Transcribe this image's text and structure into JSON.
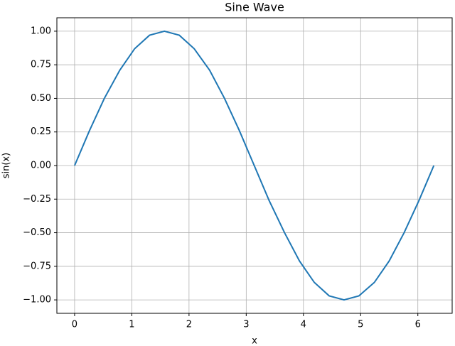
{
  "chart_data": {
    "type": "line",
    "title": "Sine Wave",
    "x_label": "x",
    "y_label": "sin(x)",
    "x": [
      0,
      0.26,
      0.52,
      0.79,
      1.05,
      1.31,
      1.57,
      1.83,
      2.09,
      2.36,
      2.62,
      2.88,
      3.14,
      3.4,
      3.67,
      3.93,
      4.19,
      4.45,
      4.71,
      4.97,
      5.24,
      5.5,
      5.76,
      6.02,
      6.28
    ],
    "series": [
      {
        "name": "sin(x)",
        "color": "#1f77b4",
        "values": [
          0,
          0.26,
          0.5,
          0.71,
          0.87,
          0.97,
          1,
          0.97,
          0.87,
          0.71,
          0.5,
          0.26,
          0,
          -0.26,
          -0.5,
          -0.71,
          -0.87,
          -0.97,
          -1,
          -0.97,
          -0.87,
          -0.71,
          -0.5,
          -0.26,
          0
        ]
      }
    ],
    "xlim": [
      -0.31,
      6.6
    ],
    "ylim": [
      -1.1,
      1.1
    ],
    "xticks": [
      0,
      1,
      2,
      3,
      4,
      5,
      6
    ],
    "yticks": [
      {
        "value": -1,
        "label": "−1.00"
      },
      {
        "value": -0.75,
        "label": "−0.75"
      },
      {
        "value": -0.5,
        "label": "−0.50"
      },
      {
        "value": -0.25,
        "label": "−0.25"
      },
      {
        "value": 0,
        "label": "0.00"
      },
      {
        "value": 0.25,
        "label": "0.25"
      },
      {
        "value": 0.5,
        "label": "0.50"
      },
      {
        "value": 0.75,
        "label": "0.75"
      },
      {
        "value": 1,
        "label": "1.00"
      }
    ],
    "grid": true
  }
}
